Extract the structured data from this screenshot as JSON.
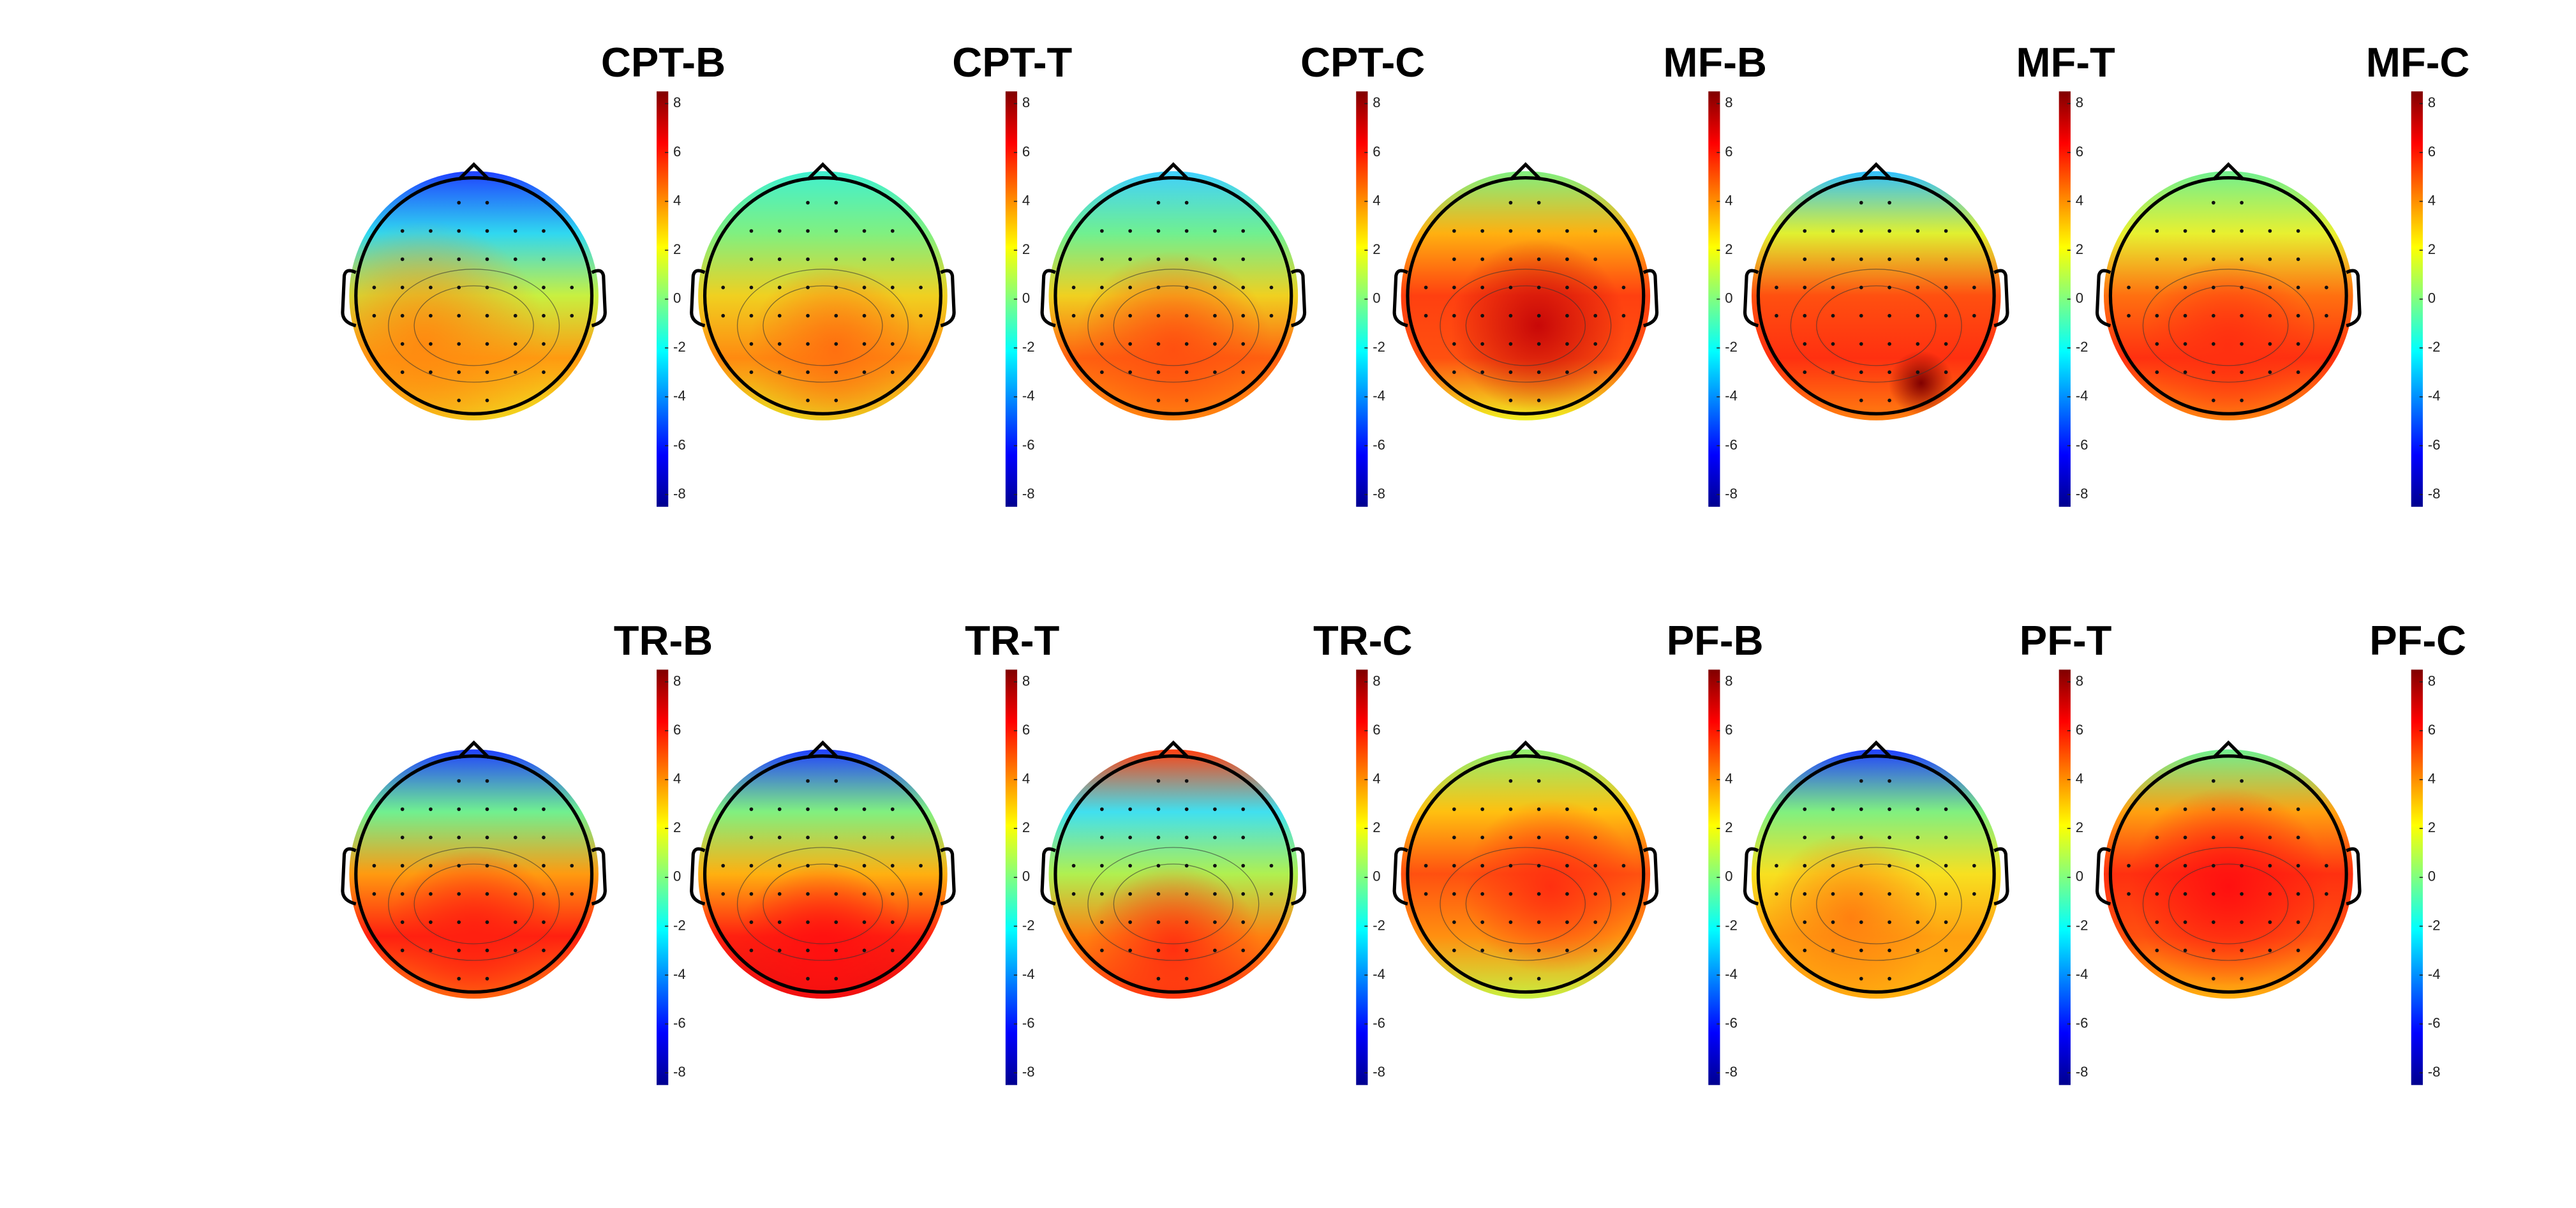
{
  "panels": [
    {
      "title": "CPT-B"
    },
    {
      "title": "CPT-T"
    },
    {
      "title": "CPT-C"
    },
    {
      "title": "MF-B"
    },
    {
      "title": "MF-T"
    },
    {
      "title": "MF-C"
    },
    {
      "title": "TR-B"
    },
    {
      "title": "TR-T"
    },
    {
      "title": "TR-C"
    },
    {
      "title": "PF-B"
    },
    {
      "title": "PF-T"
    },
    {
      "title": "PF-C"
    }
  ],
  "colorbar": {
    "colormap": "jet",
    "clim": [
      -8.5,
      8.5
    ],
    "ticks": [
      -8,
      -6,
      -4,
      -2,
      0,
      2,
      4,
      6,
      8
    ]
  }
}
